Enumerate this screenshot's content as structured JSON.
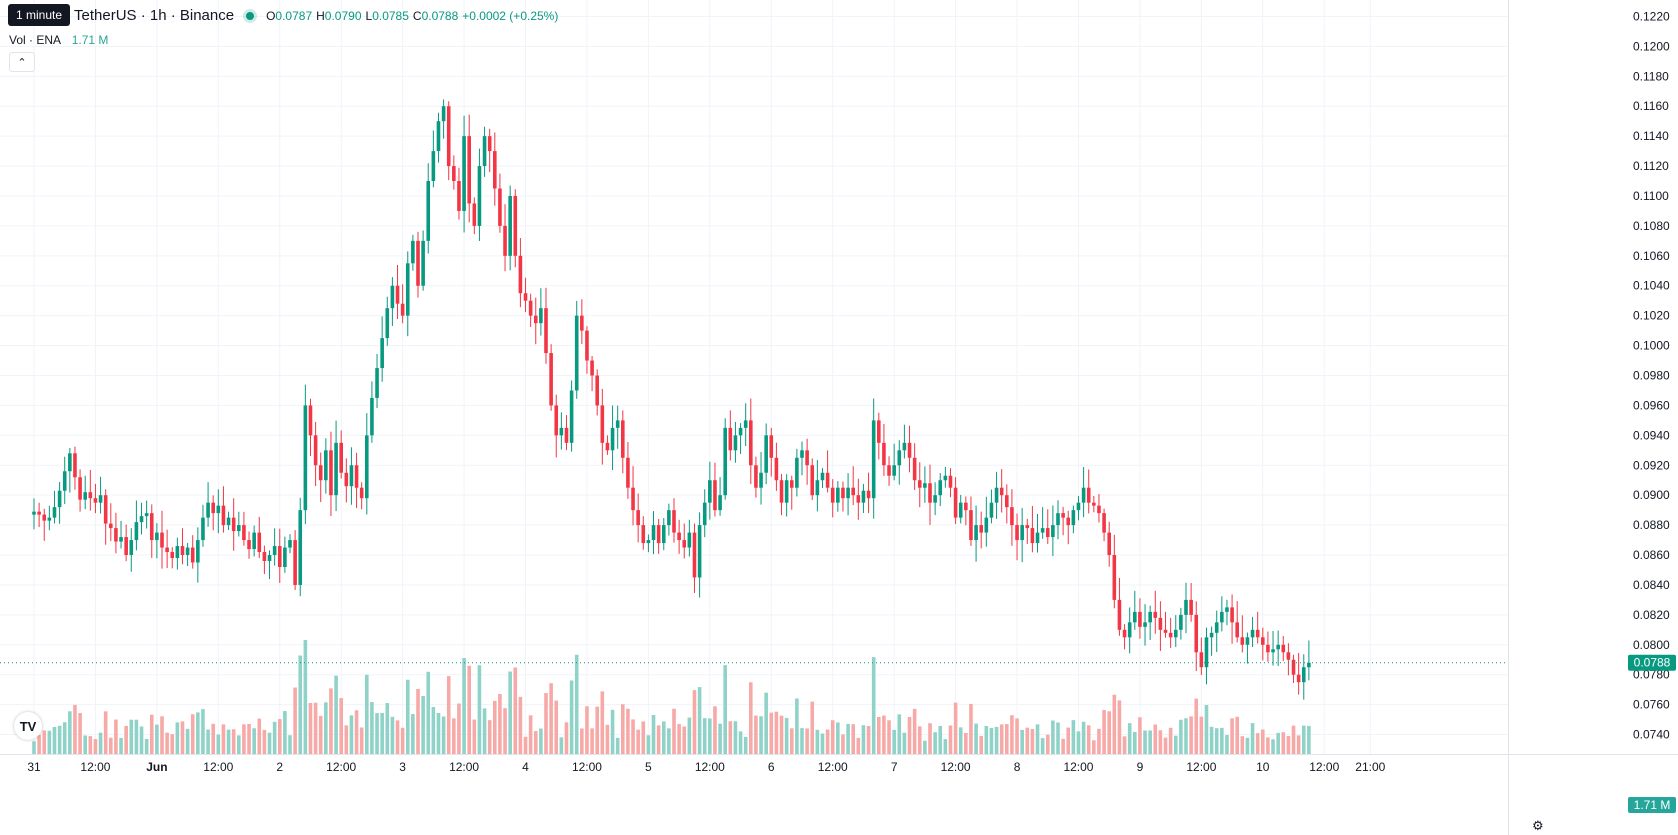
{
  "header": {
    "symbol_title": "TetherUS · 1h · Binance",
    "tooltip": "1 minute",
    "status_icon": "market-open-dot-icon",
    "ohlc": [
      {
        "key": "O",
        "value": "0.0787"
      },
      {
        "key": "H",
        "value": "0.0790"
      },
      {
        "key": "L",
        "value": "0.0785"
      },
      {
        "key": "C",
        "value": "0.0788"
      }
    ],
    "change": "+0.0002 (+0.25%)"
  },
  "volume_legend": {
    "label": "Vol · ENA",
    "value": "1.71 M"
  },
  "collapse_icon": "chevron-up-icon",
  "logo_text": "TV",
  "settings_icon": "gear-icon",
  "colors": {
    "up": "#089981",
    "down": "#f23645",
    "vol_up": "#8fd3c8",
    "vol_down": "#f7a9a7",
    "grid": "#f0f3fa"
  },
  "chart_data": {
    "type": "candlestick",
    "interval": "1h",
    "y_ticks": [
      "0.1220",
      "0.1200",
      "0.1180",
      "0.1160",
      "0.1140",
      "0.1120",
      "0.1100",
      "0.1080",
      "0.1060",
      "0.1040",
      "0.1020",
      "0.1000",
      "0.0980",
      "0.0960",
      "0.0940",
      "0.0920",
      "0.0900",
      "0.0880",
      "0.0860",
      "0.0840",
      "0.0820",
      "0.0800",
      "0.0780",
      "0.0760",
      "0.0740"
    ],
    "ylim": [
      0.0727,
      0.1231
    ],
    "x_ticks": [
      {
        "label": "31",
        "t": 0
      },
      {
        "label": "12:00",
        "t": 12
      },
      {
        "label": "Jun",
        "t": 24
      },
      {
        "label": "12:00",
        "t": 36
      },
      {
        "label": "2",
        "t": 48
      },
      {
        "label": "12:00",
        "t": 60
      },
      {
        "label": "3",
        "t": 72
      },
      {
        "label": "12:00",
        "t": 84
      },
      {
        "label": "4",
        "t": 96
      },
      {
        "label": "12:00",
        "t": 108
      },
      {
        "label": "5",
        "t": 120
      },
      {
        "label": "12:00",
        "t": 132
      },
      {
        "label": "6",
        "t": 144
      },
      {
        "label": "12:00",
        "t": 156
      },
      {
        "label": "7",
        "t": 168
      },
      {
        "label": "12:00",
        "t": 180
      },
      {
        "label": "8",
        "t": 192
      },
      {
        "label": "12:00",
        "t": 204
      },
      {
        "label": "9",
        "t": 216
      },
      {
        "label": "12:00",
        "t": 228
      },
      {
        "label": "10",
        "t": 240
      },
      {
        "label": "12:00",
        "t": 252
      },
      {
        "label": "21:00",
        "t": 261
      }
    ],
    "last_price": "0.0788",
    "last_volume": "1.71 M",
    "volume_max": 1.8,
    "close": [
      0.0889,
      0.0887,
      0.0883,
      0.0885,
      0.0892,
      0.0903,
      0.0916,
      0.0928,
      0.0912,
      0.0897,
      0.0902,
      0.0898,
      0.0895,
      0.09,
      0.0881,
      0.0878,
      0.0869,
      0.0872,
      0.086,
      0.087,
      0.0882,
      0.0886,
      0.0888,
      0.087,
      0.0875,
      0.0865,
      0.0862,
      0.0858,
      0.0866,
      0.086,
      0.0865,
      0.0855,
      0.087,
      0.0885,
      0.0895,
      0.0888,
      0.0893,
      0.088,
      0.0885,
      0.0876,
      0.088,
      0.087,
      0.0864,
      0.0875,
      0.0862,
      0.0856,
      0.086,
      0.0866,
      0.0852,
      0.0865,
      0.087,
      0.084,
      0.089,
      0.096,
      0.094,
      0.092,
      0.091,
      0.093,
      0.09,
      0.0935,
      0.0915,
      0.0906,
      0.092,
      0.0905,
      0.0898,
      0.094,
      0.0965,
      0.0985,
      0.1005,
      0.1025,
      0.104,
      0.1028,
      0.102,
      0.1055,
      0.107,
      0.104,
      0.107,
      0.111,
      0.113,
      0.115,
      0.116,
      0.112,
      0.111,
      0.109,
      0.114,
      0.1095,
      0.108,
      0.112,
      0.114,
      0.113,
      0.1105,
      0.108,
      0.106,
      0.11,
      0.106,
      0.1035,
      0.103,
      0.102,
      0.1015,
      0.1025,
      0.0995,
      0.096,
      0.094,
      0.0945,
      0.0935,
      0.097,
      0.102,
      0.101,
      0.099,
      0.098,
      0.096,
      0.0935,
      0.093,
      0.0945,
      0.095,
      0.0925,
      0.0905,
      0.089,
      0.088,
      0.0868,
      0.087,
      0.088,
      0.0868,
      0.088,
      0.089,
      0.0875,
      0.087,
      0.0865,
      0.0875,
      0.0845,
      0.088,
      0.0895,
      0.091,
      0.089,
      0.09,
      0.0945,
      0.093,
      0.094,
      0.0945,
      0.095,
      0.092,
      0.0905,
      0.0915,
      0.094,
      0.0925,
      0.091,
      0.0895,
      0.091,
      0.0905,
      0.0925,
      0.093,
      0.092,
      0.09,
      0.091,
      0.0915,
      0.0905,
      0.0895,
      0.0905,
      0.0898,
      0.0905,
      0.09,
      0.0895,
      0.0903,
      0.0898,
      0.095,
      0.0935,
      0.092,
      0.0913,
      0.092,
      0.093,
      0.0935,
      0.0925,
      0.091,
      0.0905,
      0.0908,
      0.0895,
      0.09,
      0.091,
      0.0913,
      0.0905,
      0.0885,
      0.0895,
      0.089,
      0.087,
      0.088,
      0.0875,
      0.0885,
      0.0895,
      0.0905,
      0.09,
      0.0892,
      0.088,
      0.087,
      0.088,
      0.0878,
      0.0868,
      0.0875,
      0.0878,
      0.0872,
      0.088,
      0.0888,
      0.0885,
      0.088,
      0.089,
      0.0895,
      0.0905,
      0.0895,
      0.0893,
      0.0888,
      0.0875,
      0.086,
      0.083,
      0.081,
      0.0805,
      0.0815,
      0.0822,
      0.0812,
      0.0815,
      0.0822,
      0.0818,
      0.081,
      0.0808,
      0.0805,
      0.081,
      0.082,
      0.083,
      0.082,
      0.0795,
      0.0785,
      0.0805,
      0.0808,
      0.0815,
      0.0822,
      0.0825,
      0.0815,
      0.0805,
      0.08,
      0.0805,
      0.081,
      0.0805,
      0.08,
      0.0795,
      0.0797,
      0.08,
      0.0795,
      0.079,
      0.078,
      0.0775,
      0.0785,
      0.0788
    ]
  }
}
